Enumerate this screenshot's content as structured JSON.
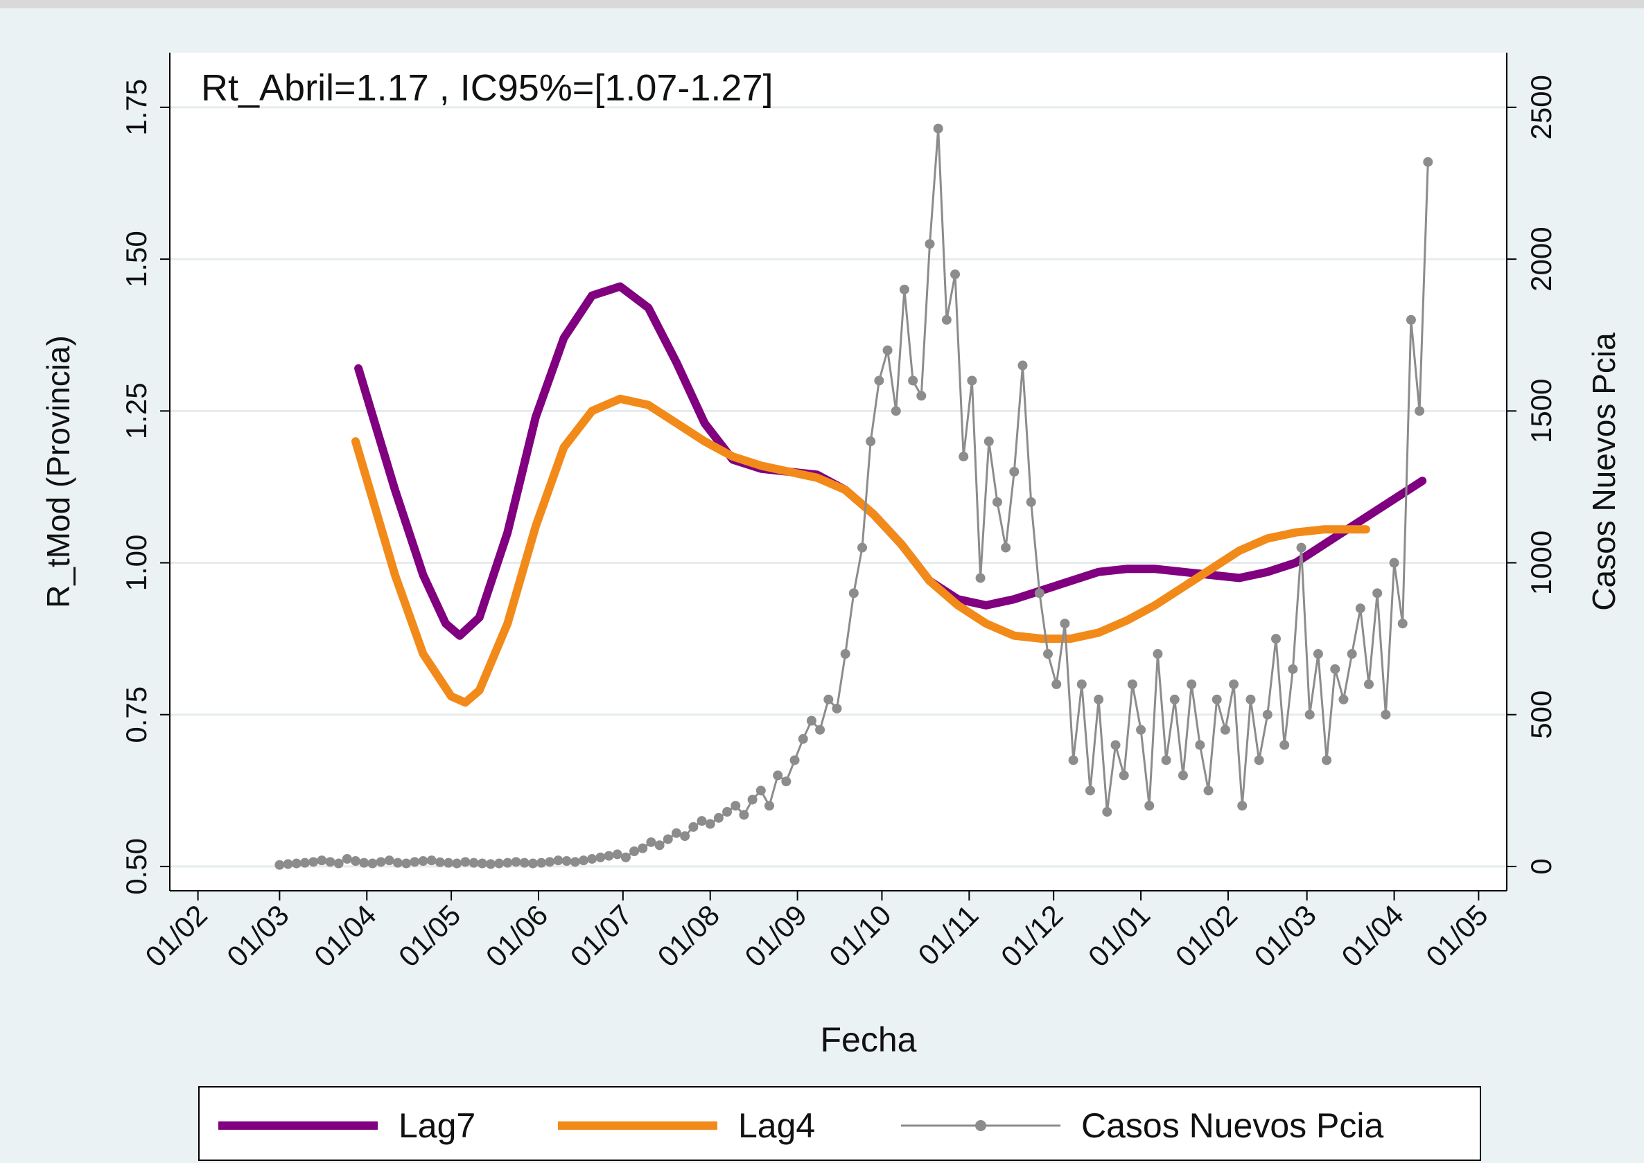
{
  "chart_data": {
    "type": "line",
    "annotation": "Rt_Abril=1.17 , IC95%=[1.07-1.27]",
    "xlabel": "Fecha",
    "ylabel": "R_tMod (Provincia)",
    "y2label": "Casos Nuevos Pcia",
    "xlim": [
      -10,
      465
    ],
    "xticks": [
      {
        "value": 0,
        "label": "01/02"
      },
      {
        "value": 29,
        "label": "01/03"
      },
      {
        "value": 60,
        "label": "01/04"
      },
      {
        "value": 90,
        "label": "01/05"
      },
      {
        "value": 121,
        "label": "01/06"
      },
      {
        "value": 151,
        "label": "01/07"
      },
      {
        "value": 182,
        "label": "01/08"
      },
      {
        "value": 213,
        "label": "01/09"
      },
      {
        "value": 243,
        "label": "01/10"
      },
      {
        "value": 274,
        "label": "01/11"
      },
      {
        "value": 304,
        "label": "01/12"
      },
      {
        "value": 335,
        "label": "01/01"
      },
      {
        "value": 366,
        "label": "01/02"
      },
      {
        "value": 394,
        "label": "01/03"
      },
      {
        "value": 425,
        "label": "01/04"
      },
      {
        "value": 455,
        "label": "01/05"
      }
    ],
    "ylim": [
      0.46,
      1.84
    ],
    "yticks": [
      {
        "value": 0.5,
        "label": "0.50"
      },
      0.75,
      {
        "value": 1,
        "label": "1.00"
      },
      1.25,
      {
        "value": 1.5,
        "label": "1.50"
      },
      1.75
    ],
    "y2lim": [
      -80,
      2680
    ],
    "y2ticks": [
      0,
      500,
      1000,
      1500,
      2000,
      2500
    ],
    "grid": true,
    "legend": "bottom",
    "series": [
      {
        "name": "Lag7",
        "color": "#800080",
        "x": [
          57,
          70,
          80,
          88,
          93,
          100,
          110,
          120,
          130,
          140,
          150,
          160,
          170,
          180,
          190,
          200,
          210,
          220,
          230,
          240,
          250,
          260,
          270,
          280,
          290,
          300,
          310,
          320,
          330,
          340,
          350,
          360,
          370,
          380,
          390,
          400,
          410,
          420,
          430,
          435
        ],
        "values": [
          1.32,
          1.12,
          0.98,
          0.9,
          0.88,
          0.91,
          1.05,
          1.24,
          1.37,
          1.44,
          1.455,
          1.42,
          1.33,
          1.23,
          1.17,
          1.155,
          1.15,
          1.145,
          1.12,
          1.08,
          1.03,
          0.97,
          0.94,
          0.93,
          0.94,
          0.955,
          0.97,
          0.985,
          0.99,
          0.99,
          0.985,
          0.98,
          0.975,
          0.985,
          1.0,
          1.03,
          1.06,
          1.09,
          1.12,
          1.135
        ]
      },
      {
        "name": "Lag4",
        "color": "#f28a1a",
        "x": [
          56,
          70,
          80,
          90,
          95,
          100,
          110,
          120,
          130,
          140,
          150,
          160,
          170,
          180,
          190,
          200,
          210,
          220,
          230,
          240,
          250,
          260,
          270,
          280,
          290,
          300,
          310,
          320,
          330,
          340,
          350,
          360,
          370,
          380,
          390,
          400,
          415
        ],
        "values": [
          1.2,
          0.98,
          0.85,
          0.78,
          0.77,
          0.79,
          0.9,
          1.06,
          1.19,
          1.25,
          1.27,
          1.26,
          1.23,
          1.2,
          1.175,
          1.16,
          1.15,
          1.14,
          1.12,
          1.08,
          1.03,
          0.97,
          0.93,
          0.9,
          0.88,
          0.875,
          0.875,
          0.885,
          0.905,
          0.93,
          0.96,
          0.99,
          1.02,
          1.04,
          1.05,
          1.055,
          1.055
        ]
      },
      {
        "name": "Casos Nuevos Pcia",
        "color": "#8c8c8c",
        "axis": "y2",
        "marker": "circle",
        "x": [
          29,
          32,
          35,
          38,
          41,
          44,
          47,
          50,
          53,
          56,
          59,
          62,
          65,
          68,
          71,
          74,
          77,
          80,
          83,
          86,
          89,
          92,
          95,
          98,
          101,
          104,
          107,
          110,
          113,
          116,
          119,
          122,
          125,
          128,
          131,
          134,
          137,
          140,
          143,
          146,
          149,
          152,
          155,
          158,
          161,
          164,
          167,
          170,
          173,
          176,
          179,
          182,
          185,
          188,
          191,
          194,
          197,
          200,
          203,
          206,
          209,
          212,
          215,
          218,
          221,
          224,
          227,
          230,
          233,
          236,
          239,
          242,
          245,
          248,
          251,
          254,
          257,
          260,
          263,
          266,
          269,
          272,
          275,
          278,
          281,
          284,
          287,
          290,
          293,
          296,
          299,
          302,
          305,
          308,
          311,
          314,
          317,
          320,
          323,
          326,
          329,
          332,
          335,
          338,
          341,
          344,
          347,
          350,
          353,
          356,
          359,
          362,
          365,
          368,
          371,
          374,
          377,
          380,
          383,
          386,
          389,
          392,
          395,
          398,
          401,
          404,
          407,
          410,
          413,
          416,
          419,
          422,
          425,
          428,
          431,
          434,
          437
        ],
        "values": [
          5,
          8,
          10,
          12,
          15,
          20,
          15,
          10,
          25,
          18,
          12,
          10,
          15,
          20,
          12,
          10,
          15,
          18,
          20,
          14,
          12,
          10,
          15,
          12,
          10,
          8,
          10,
          12,
          15,
          12,
          10,
          12,
          15,
          20,
          18,
          15,
          20,
          25,
          30,
          35,
          40,
          30,
          50,
          60,
          80,
          70,
          90,
          110,
          100,
          130,
          150,
          140,
          160,
          180,
          200,
          170,
          220,
          250,
          200,
          300,
          280,
          350,
          420,
          480,
          450,
          550,
          520,
          700,
          900,
          1050,
          1400,
          1600,
          1700,
          1500,
          1900,
          1600,
          1550,
          2050,
          2430,
          1800,
          1950,
          1350,
          1600,
          950,
          1400,
          1200,
          1050,
          1300,
          1650,
          1200,
          900,
          700,
          600,
          800,
          350,
          600,
          250,
          550,
          180,
          400,
          300,
          600,
          450,
          200,
          700,
          350,
          550,
          300,
          600,
          400,
          250,
          550,
          450,
          600,
          200,
          550,
          350,
          500,
          750,
          400,
          650,
          1050,
          500,
          700,
          350,
          650,
          550,
          700,
          850,
          600,
          900,
          500,
          1000,
          800,
          1800,
          1500,
          2320
        ]
      }
    ]
  }
}
